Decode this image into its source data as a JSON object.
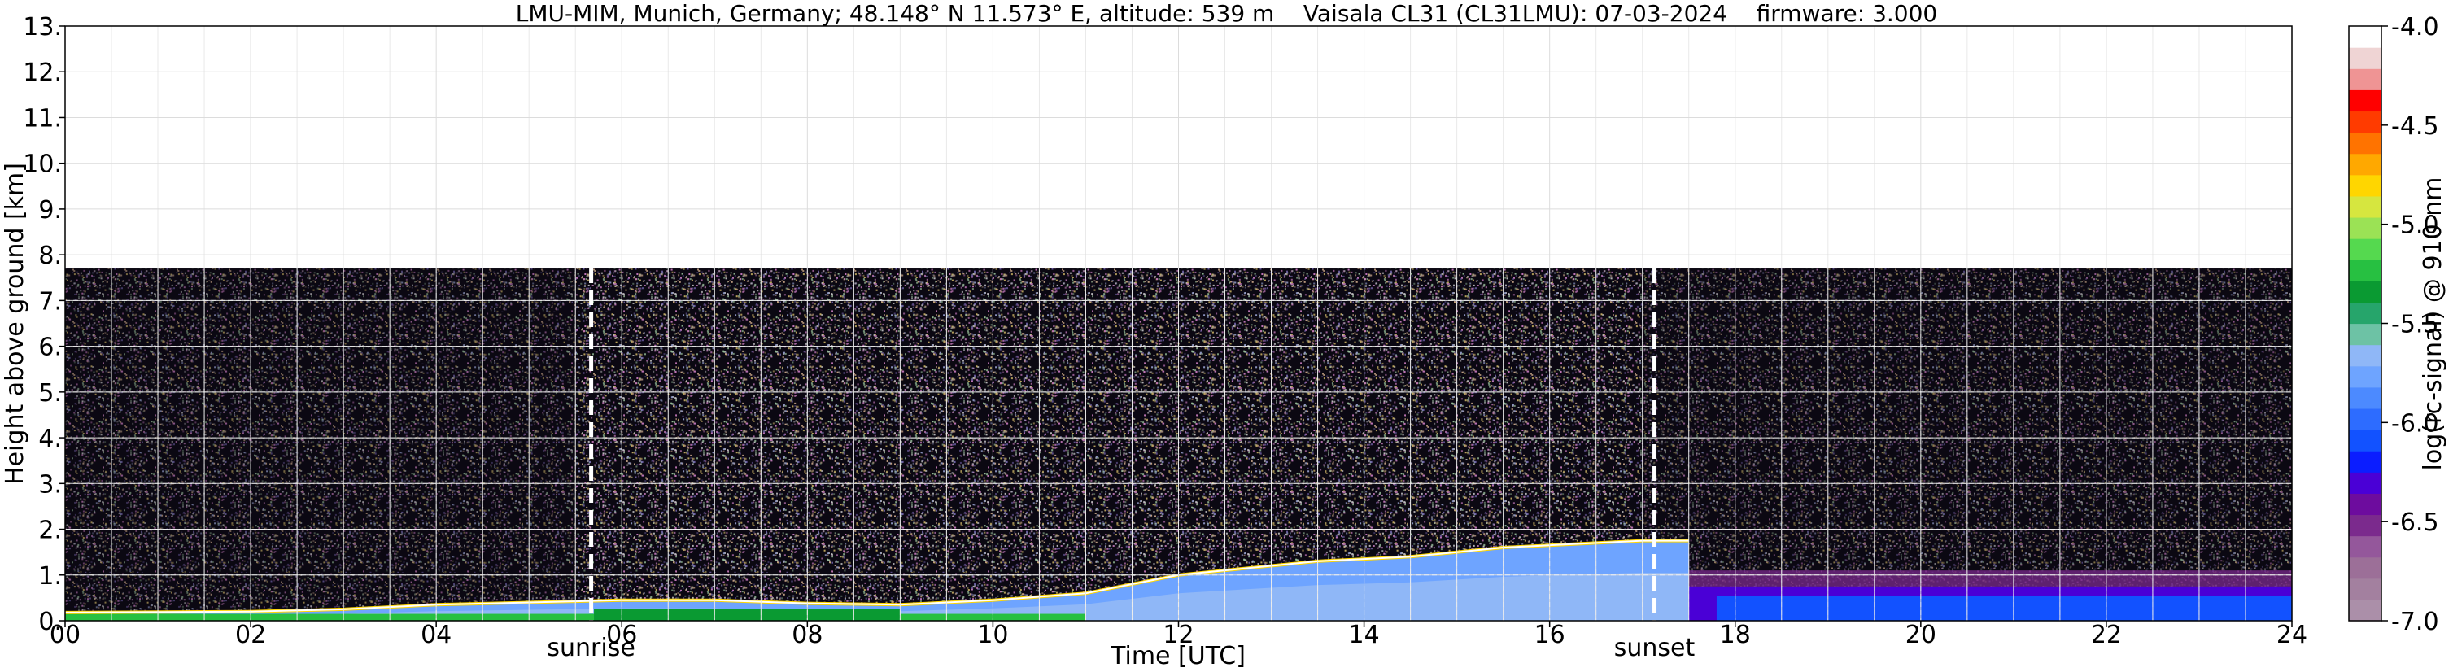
{
  "title": "LMU-MIM, Munich, Germany; 48.148° N 11.573° E, altitude: 539 m    Vaisala CL31 (CL31LMU): 07-03-2024    firmware: 3.000",
  "chart_data": {
    "type": "heatmap",
    "title": "LMU-MIM, Munich, Germany; 48.148° N 11.573° E, altitude: 539 m    Vaisala CL31 (CL31LMU): 07-03-2024    firmware: 3.000",
    "xlabel": "Time [UTC]",
    "ylabel": "Height above ground [km]",
    "xlim": [
      0,
      24
    ],
    "ylim": [
      0,
      13
    ],
    "xticks": [
      "00",
      "02",
      "04",
      "06",
      "08",
      "10",
      "12",
      "14",
      "16",
      "18",
      "20",
      "22",
      "24"
    ],
    "yticks": [
      "0.",
      "1.",
      "2.",
      "3.",
      "4.",
      "5.",
      "6.",
      "7.",
      "8.",
      "9.",
      "10.",
      "11.",
      "12.",
      "13."
    ],
    "grid": true,
    "data_max_height_km": 7.7,
    "boundary_layer_top_km": [
      {
        "t": 0,
        "h": 0.18
      },
      {
        "t": 2,
        "h": 0.2
      },
      {
        "t": 3,
        "h": 0.25
      },
      {
        "t": 4,
        "h": 0.35
      },
      {
        "t": 5,
        "h": 0.4
      },
      {
        "t": 6,
        "h": 0.45
      },
      {
        "t": 7,
        "h": 0.45
      },
      {
        "t": 8,
        "h": 0.38
      },
      {
        "t": 9,
        "h": 0.35
      },
      {
        "t": 10,
        "h": 0.45
      },
      {
        "t": 11,
        "h": 0.6
      },
      {
        "t": 11.5,
        "h": 0.8
      },
      {
        "t": 12,
        "h": 1.0
      },
      {
        "t": 12.5,
        "h": 1.1
      },
      {
        "t": 13,
        "h": 1.2
      },
      {
        "t": 13.5,
        "h": 1.3
      },
      {
        "t": 14,
        "h": 1.35
      },
      {
        "t": 14.5,
        "h": 1.4
      },
      {
        "t": 15,
        "h": 1.5
      },
      {
        "t": 15.5,
        "h": 1.6
      },
      {
        "t": 16,
        "h": 1.65
      },
      {
        "t": 16.5,
        "h": 1.7
      },
      {
        "t": 17,
        "h": 1.75
      },
      {
        "t": 17.5,
        "h": 1.75
      }
    ],
    "vertical_markers": [
      {
        "time": 5.67,
        "label": "sunrise"
      },
      {
        "time": 17.13,
        "label": "sunset"
      }
    ],
    "colorbar": {
      "label": "log(rc-signal) @ 910 nm",
      "range": [
        -7.0,
        -4.0
      ],
      "ticks": [
        "-4.0",
        "-4.5",
        "-5.0",
        "-5.5",
        "-6.0",
        "-6.5",
        "-7.0"
      ],
      "colors": [
        "#ab8fa9",
        "#a3809f",
        "#9c6f98",
        "#94579b",
        "#7b2a8d",
        "#6d0c9e",
        "#4a00d6",
        "#0b1dff",
        "#1252ff",
        "#2d6cff",
        "#4c8aff",
        "#6ea4ff",
        "#8fb7f7",
        "#6dc2a5",
        "#26a56b",
        "#0a9a32",
        "#27c041",
        "#55d94f",
        "#9be255",
        "#d6e63f",
        "#ffd600",
        "#ffa800",
        "#ff7300",
        "#ff3b00",
        "#ff0000",
        "#ef9494",
        "#efd4d4",
        "#ffffff"
      ]
    }
  }
}
